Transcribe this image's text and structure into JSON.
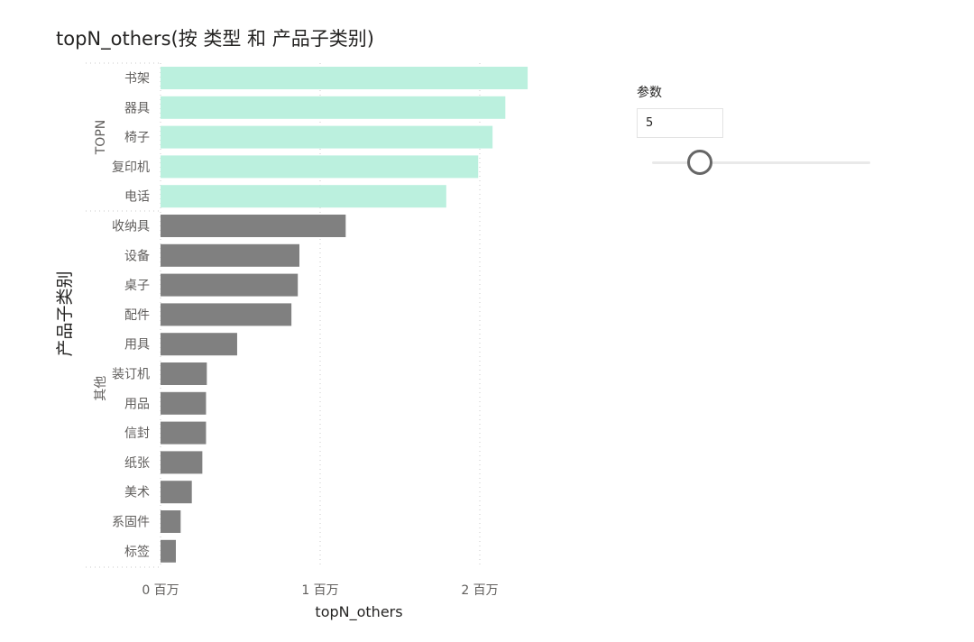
{
  "chart_data": {
    "type": "bar",
    "orientation": "horizontal",
    "title": "topN_others(按 类型 和 产品子类别)",
    "xlabel": "topN_others",
    "ylabel": "产品子类别",
    "xlim": [
      0,
      2300000
    ],
    "x_ticks": [
      {
        "value": 0,
        "label": "0 百万"
      },
      {
        "value": 1000000,
        "label": "1 百万"
      },
      {
        "value": 2000000,
        "label": "2 百万"
      }
    ],
    "grid": true,
    "groups": [
      {
        "name": "TOPN",
        "color": "#bbf0de",
        "categories": [
          "书架",
          "器具",
          "椅子",
          "复印机",
          "电话"
        ],
        "values": [
          2300000,
          2160000,
          2080000,
          1990000,
          1790000
        ]
      },
      {
        "name": "其他",
        "color": "#808080",
        "categories": [
          "收纳具",
          "设备",
          "桌子",
          "配件",
          "用具",
          "装订机",
          "用品",
          "信封",
          "纸张",
          "美术",
          "系固件",
          "标签"
        ],
        "values": [
          1160000,
          870000,
          860000,
          820000,
          480000,
          290000,
          285000,
          285000,
          262000,
          196000,
          126000,
          96000
        ]
      }
    ]
  },
  "parameter": {
    "label": "参数",
    "value": "5",
    "slider_fraction": 0.22
  }
}
